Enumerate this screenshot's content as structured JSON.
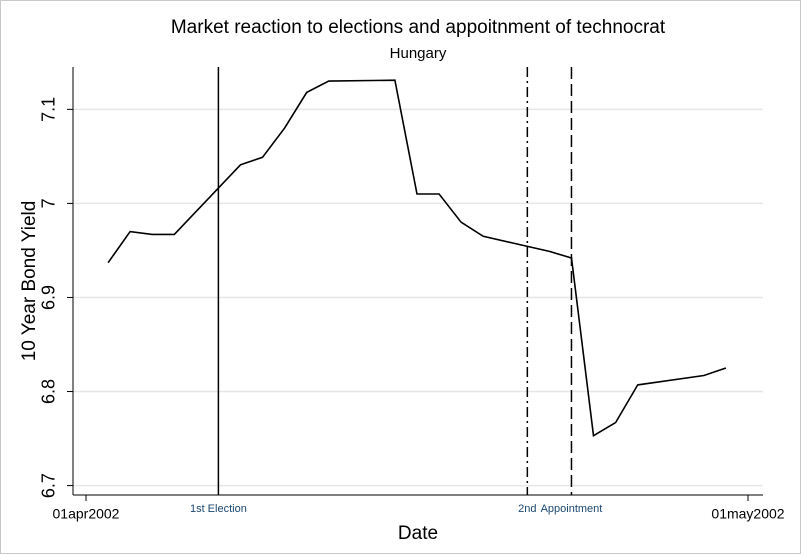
{
  "chart_data": {
    "type": "line",
    "title": "Market reaction to elections and appoitnment of technocrat",
    "subtitle": "Hungary",
    "x_label": "Date",
    "y_label": "10 Year Bond Yield",
    "x": [
      "2002-04-02",
      "2002-04-03",
      "2002-04-04",
      "2002-04-05",
      "2002-04-08",
      "2002-04-09",
      "2002-04-10",
      "2002-04-11",
      "2002-04-12",
      "2002-04-15",
      "2002-04-16",
      "2002-04-17",
      "2002-04-18",
      "2002-04-19",
      "2002-04-22",
      "2002-04-23",
      "2002-04-24",
      "2002-04-25",
      "2002-04-26",
      "2002-04-29",
      "2002-04-30"
    ],
    "values": [
      6.937,
      6.97,
      6.967,
      6.967,
      7.041,
      7.049,
      7.08,
      7.118,
      7.13,
      7.131,
      7.01,
      7.01,
      6.98,
      6.965,
      6.949,
      6.942,
      6.753,
      6.767,
      6.807,
      6.817,
      6.825
    ],
    "color": "#000000",
    "xlim": [
      "2002-04-01",
      "2002-05-01"
    ],
    "xticks": [
      {
        "value": "2002-04-01",
        "label": "01apr2002"
      },
      {
        "value": "2002-05-01",
        "label": "01may2002"
      }
    ],
    "ylim": [
      6.69,
      7.145
    ],
    "yticks": [
      6.7,
      6.8,
      6.9,
      7,
      7.1
    ],
    "grid": true,
    "events": [
      {
        "x": "2002-04-07",
        "label": "1st Election",
        "style": "solid"
      },
      {
        "x": "2002-04-21",
        "label": "2nd",
        "style": "dashdot"
      },
      {
        "x": "2002-04-23",
        "label": "Appointment",
        "style": "dash"
      }
    ]
  }
}
